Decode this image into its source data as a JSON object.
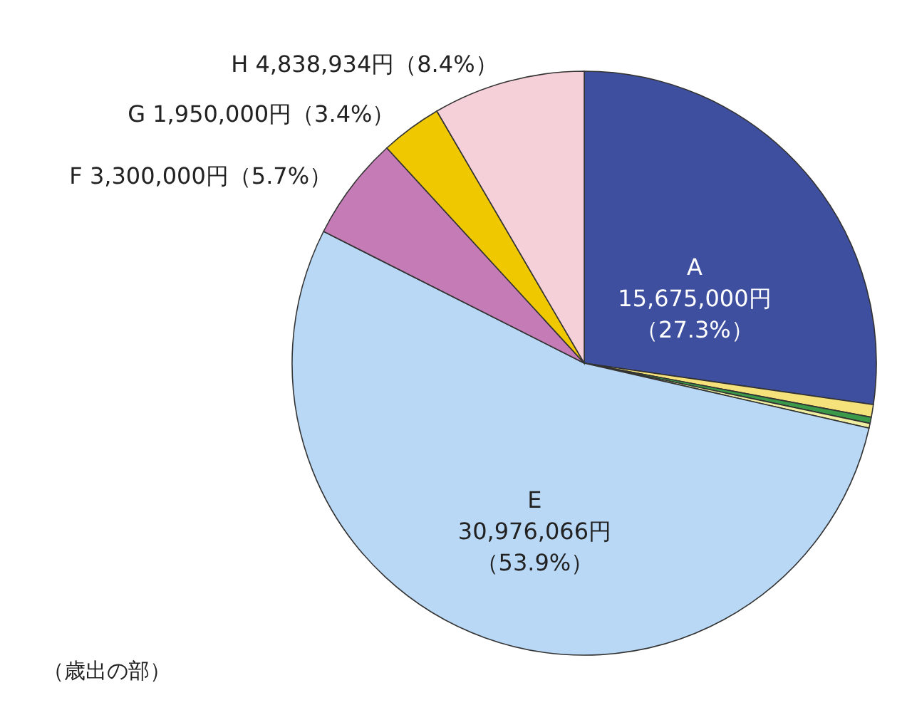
{
  "chart_data": {
    "type": "pie",
    "categories": [
      "A",
      null,
      null,
      null,
      "E",
      "F",
      "G",
      "H"
    ],
    "values": [
      15675000,
      400000,
      200000,
      150000,
      30976066,
      3300000,
      1950000,
      4838934
    ],
    "colors": [
      "#3f4fa0",
      "#f5e27a",
      "#3a9a4a",
      "#f0eea0",
      "#b8d8f5",
      "#c57bb5",
      "#f0c800",
      "#f5d0d8"
    ],
    "value_labels": [
      "15,675,000円（27.3%）",
      null,
      null,
      null,
      "30,976,066円（53.9%）",
      "3,300,000円（5.7%）",
      "1,950,000円（3.4%）",
      "4,838,934円（8.4%）"
    ],
    "annotations": [
      "（歳出の部）"
    ]
  }
}
